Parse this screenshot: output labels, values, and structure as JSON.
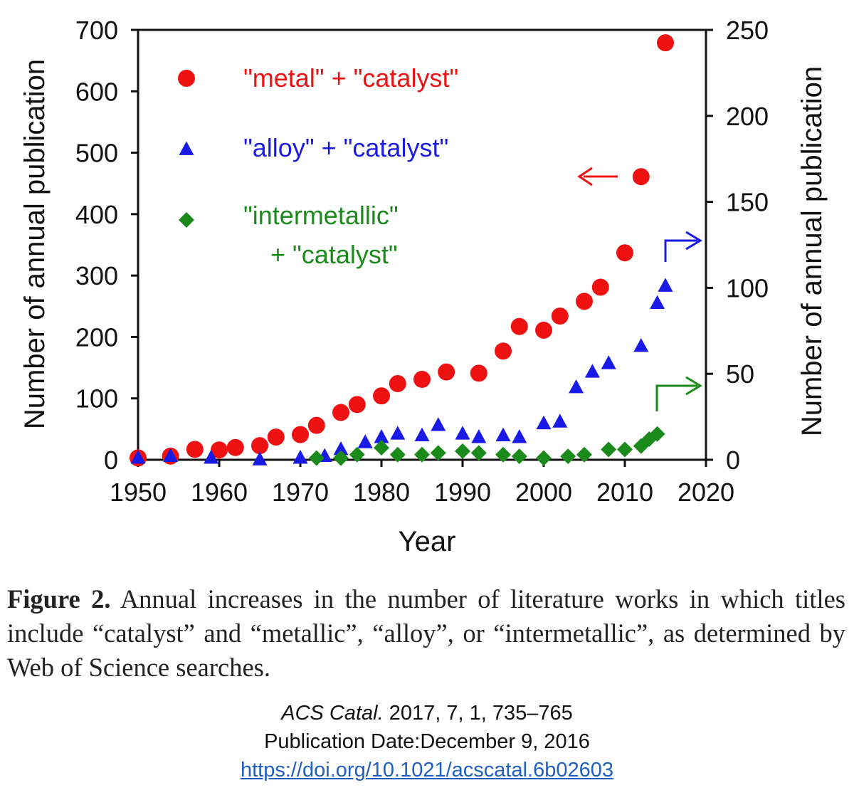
{
  "chart_data": {
    "type": "scatter",
    "xlabel": "Year",
    "ylabel_left": "Number of annual publication",
    "ylabel_right": "Number of annual publication",
    "xlim": [
      1950,
      2020
    ],
    "ylim_left": [
      0,
      700
    ],
    "ylim_right": [
      0,
      250
    ],
    "xticks": [
      1950,
      1960,
      1970,
      1980,
      1990,
      2000,
      2010,
      2020
    ],
    "yticks_left": [
      0,
      100,
      200,
      300,
      400,
      500,
      600,
      700
    ],
    "yticks_right": [
      0,
      50,
      100,
      150,
      200,
      250
    ],
    "grid": false,
    "legend_position": "top-left",
    "series": [
      {
        "name": "\"metal\"  + \"catalyst\"",
        "marker": "circle",
        "color": "#ee1111",
        "axis": "left",
        "x": [
          1950,
          1954,
          1957,
          1960,
          1962,
          1965,
          1967,
          1970,
          1972,
          1975,
          1977,
          1980,
          1982,
          1985,
          1988,
          1992,
          1995,
          1997,
          2000,
          2002,
          2005,
          2007,
          2010,
          2012,
          2015
        ],
        "y": [
          3,
          6,
          17,
          16,
          20,
          23,
          37,
          41,
          56,
          77,
          90,
          104,
          124,
          131,
          143,
          141,
          177,
          217,
          211,
          234,
          258,
          281,
          337,
          461,
          679
        ]
      },
      {
        "name": "\"alloy\" + \"catalyst\"",
        "marker": "triangle",
        "color": "#1a1ae6",
        "axis": "right",
        "x": [
          1950,
          1954,
          1959,
          1965,
          1970,
          1973,
          1975,
          1978,
          1980,
          1982,
          1985,
          1987,
          1990,
          1992,
          1995,
          1997,
          2000,
          2002,
          2004,
          2006,
          2008,
          2012,
          2014,
          2015
        ],
        "y": [
          1,
          2,
          1,
          0,
          1,
          2,
          6,
          10,
          13,
          15,
          14,
          20,
          15,
          13,
          14,
          13,
          21,
          22,
          42,
          51,
          56,
          66,
          91,
          101
        ]
      },
      {
        "name": "\"intermetallic\"\n  + \"catalyst\"",
        "marker": "diamond",
        "color": "#1a8a1a",
        "axis": "right",
        "x": [
          1972,
          1975,
          1977,
          1980,
          1982,
          1985,
          1987,
          1990,
          1992,
          1995,
          1997,
          2000,
          2003,
          2005,
          2008,
          2010,
          2012,
          2013,
          2014
        ],
        "y": [
          1,
          1,
          3,
          7,
          3,
          3,
          4,
          5,
          4,
          3,
          2,
          1,
          2,
          3,
          6,
          6,
          8,
          12,
          15
        ]
      }
    ],
    "legend": [
      {
        "label": "\"metal\"  + \"catalyst\"",
        "color": "#ee1111",
        "marker": "circle"
      },
      {
        "label": "\"alloy\" + \"catalyst\"",
        "color": "#1a1ae6",
        "marker": "triangle"
      },
      {
        "label_line1": "\"intermetallic\"",
        "label_line2": "+ \"catalyst\"",
        "color": "#1a8a1a",
        "marker": "diamond"
      }
    ]
  },
  "caption": {
    "label": "Figure 2.",
    "text": "Annual increases in the number of literature works in which titles include “catalyst” and “metallic”, “alloy”, or “intermetallic”, as determined by Web of Science searches."
  },
  "citation": {
    "journal": "ACS Catal.",
    "volume_pages": "2017, 7, 1, 735–765",
    "date": "Publication Date:December 9, 2016",
    "doi_text": "https://doi.org/10.1021/acscatal.6b02603"
  }
}
